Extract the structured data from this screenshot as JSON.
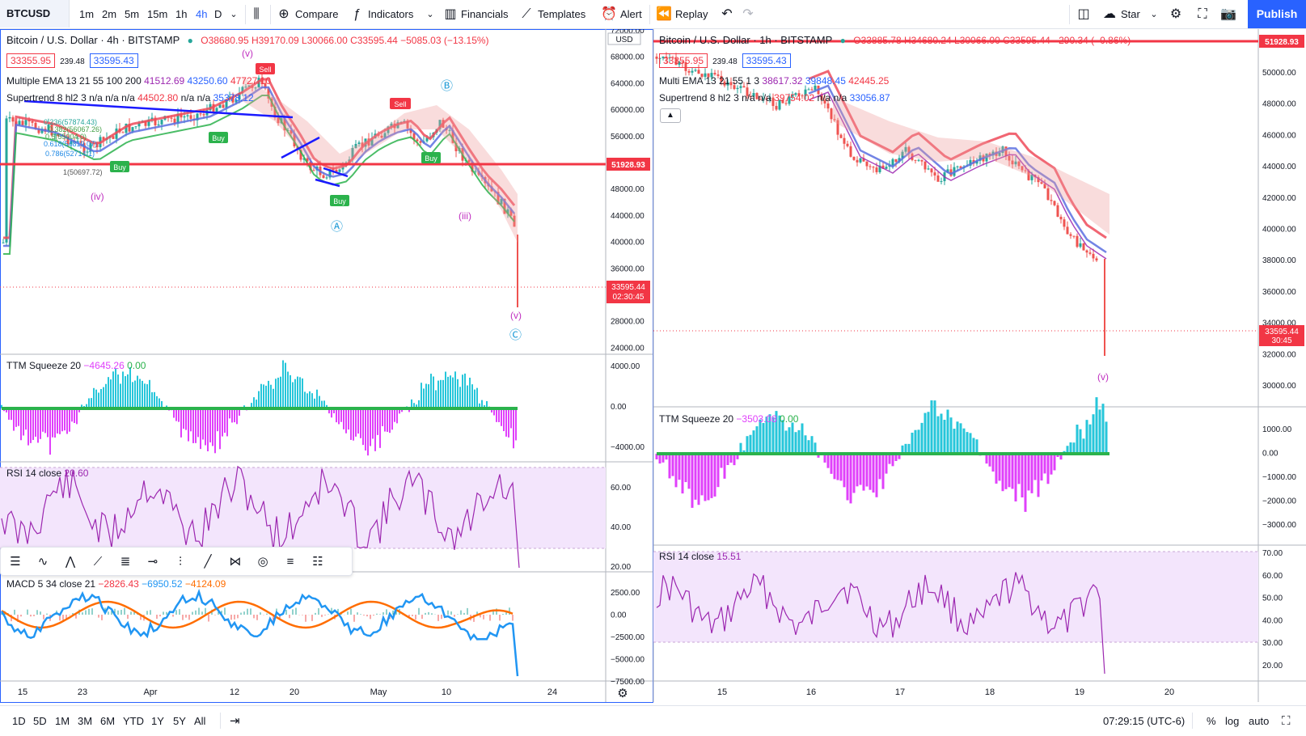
{
  "toolbar": {
    "symbol": "BTCUSD",
    "intervals": [
      "1m",
      "2m",
      "5m",
      "15m",
      "1h",
      "4h",
      "D"
    ],
    "active_interval": "4h",
    "compare": "Compare",
    "indicators": "Indicators",
    "financials": "Financials",
    "templates": "Templates",
    "alert": "Alert",
    "replay": "Replay",
    "star": "Star",
    "publish": "Publish"
  },
  "left_chart": {
    "title": "Bitcoin / U.S. Dollar · 4h · BITSTAMP",
    "ohlc": "O38680.95 H39170.09 L30066.00 C33595.44 −5085.03 (−13.15%)",
    "bid": "33355.95",
    "spread": "239.48",
    "ask": "33595.43",
    "ema_legend": "Multiple EMA 13 21 55 100 200",
    "ema_values": [
      "41512.69",
      "43250.60",
      "47727.10"
    ],
    "supertrend_legend": "Supertrend 8 hl2 3",
    "supertrend_values": "n/a n/a n/a",
    "supertrend_v1": "44502.80",
    "supertrend_v2": "n/a n/a",
    "supertrend_v3": "35378.12",
    "currency": "USD",
    "price_ticks": [
      "72000.00",
      "68000.00",
      "64000.00",
      "60000.00",
      "56000.00",
      "52000.00",
      "48000.00",
      "44000.00",
      "40000.00",
      "36000.00",
      "32000.00",
      "28000.00",
      "24000.00"
    ],
    "hline_label": "51928.93",
    "last_price": "33595.44",
    "countdown": "02:30:45",
    "fib_labels": [
      "0.236(57874.43)",
      "0.382(56067.26)",
      "0.5(55004.0)",
      "0.618(54819.07)",
      "0.786(52714.1)",
      "1(50697.72)"
    ],
    "wave_labels": [
      "(v)",
      "(iv)",
      "(iii)",
      "(v)",
      "Ⓑ",
      "Ⓐ",
      "Ⓒ",
      "Sell",
      "Sell",
      "Buy",
      "Buy",
      "Buy",
      "Buy"
    ],
    "squeeze_legend": "TTM Squeeze 20",
    "squeeze_v1": "−4645.26",
    "squeeze_v2": "0.00",
    "squeeze_ticks": [
      "4000.00",
      "0.00",
      "−4000.00"
    ],
    "rsi_legend": "RSI 14 close",
    "rsi_value": "20.60",
    "rsi_ticks": [
      "60.00",
      "40.00",
      "20.00"
    ],
    "macd_legend": "MACD 5 34 close 21",
    "macd_v1": "−2826.43",
    "macd_v2": "−6950.52",
    "macd_v3": "−4124.09",
    "macd_ticks": [
      "2500.00",
      "0.00",
      "−2500.00",
      "−5000.00",
      "−7500.00"
    ],
    "time_ticks": [
      "15",
      "23",
      "Apr",
      "12",
      "20",
      "May",
      "10",
      "24"
    ]
  },
  "right_chart": {
    "title": "Bitcoin / U.S. Dollar · 1h · BITSTAMP",
    "ohlc": "O33885.78 H34680.24 L30066.00 C33595.44 −290.34 (−0.86%)",
    "bid": "33355.95",
    "spread": "239.48",
    "ask": "33595.43",
    "ema_legend": "Multi EMA 13 21 55 1 3",
    "ema_values": [
      "38617.32",
      "39848.45",
      "42445.25"
    ],
    "supertrend_legend": "Supertrend 8 hl2 3",
    "supertrend_pre": "n/a n/a",
    "supertrend_v1": "39754.02",
    "supertrend_mid": "n/a n/a",
    "supertrend_v2": "33056.87",
    "price_ticks": [
      "50000.00",
      "48000.00",
      "46000.00",
      "44000.00",
      "42000.00",
      "40000.00",
      "38000.00",
      "36000.00",
      "34000.00",
      "32000.00",
      "30000.00"
    ],
    "hline_label": "51928.93",
    "last_price": "33595.44",
    "countdown": "30:45",
    "wave_label": "(v)",
    "squeeze_legend": "TTM Squeeze 20",
    "squeeze_v1": "−3503.08",
    "squeeze_v2": "0.00",
    "squeeze_ticks": [
      "1000.00",
      "0.00",
      "−1000.00",
      "−2000.00",
      "−3000.00"
    ],
    "rsi_legend": "RSI 14 close",
    "rsi_value": "15.51",
    "rsi_ticks": [
      "70.00",
      "60.00",
      "50.00",
      "40.00",
      "30.00",
      "20.00"
    ],
    "time_ticks": [
      "15",
      "16",
      "17",
      "18",
      "19",
      "20"
    ]
  },
  "bottombar": {
    "ranges": [
      "1D",
      "5D",
      "1M",
      "3M",
      "6M",
      "YTD",
      "1Y",
      "5Y",
      "All"
    ],
    "clock": "07:29:15 (UTC-6)",
    "percent": "%",
    "log": "log",
    "auto": "auto"
  },
  "colors": {
    "accent": "#2962ff",
    "red_line": "#f23645",
    "ema_blue": "#5b6ee1",
    "ema_red": "#ef4b5b",
    "ema_green": "#2bb24c",
    "rsi_purple": "#9c27b0",
    "macd_blue": "#2196f3",
    "macd_orange": "#ff6d00",
    "squeeze_cyan": "#26c6da",
    "squeeze_magenta": "#e040fb"
  }
}
